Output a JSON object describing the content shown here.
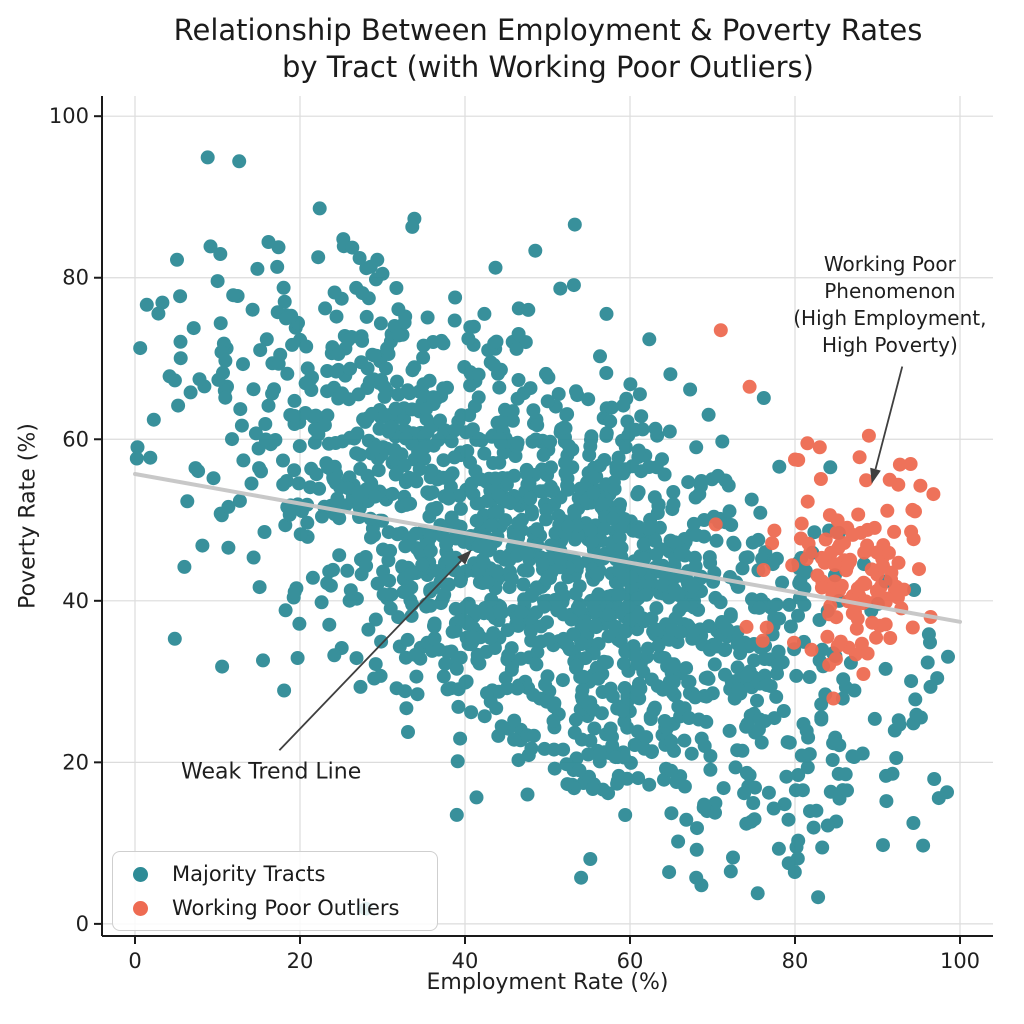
{
  "title": {
    "line1": "Relationship Between Employment & Poverty Rates",
    "line2": "by Tract (with Working Poor Outliers)"
  },
  "chart_data": {
    "type": "scatter",
    "title": "Relationship Between Employment & Poverty Rates by Tract (with Working Poor Outliers)",
    "xlabel": "Employment Rate (%)",
    "ylabel": "Poverty Rate (%)",
    "xlim": [
      -4,
      104
    ],
    "ylim": [
      -1.5,
      102.5
    ],
    "xticks": [
      0,
      20,
      40,
      60,
      80,
      100
    ],
    "yticks": [
      0,
      20,
      40,
      60,
      80,
      100
    ],
    "grid": true,
    "grid_color": "#dcdcdc",
    "spine_color": "#1a1a1a",
    "legend_position": "lower left",
    "series": [
      {
        "name": "Majority Tracts",
        "color": "#2e8b96",
        "marker_radius": 7,
        "opacity": 0.95,
        "n": 1700,
        "seed": 1337,
        "x_dist": {
          "type": "normal",
          "mean": 48,
          "sd": 20,
          "min": 0,
          "max": 100
        },
        "y_model": {
          "type": "linear_noise",
          "intercept": 71,
          "slope": -0.52,
          "noise_sd": 13,
          "min": 1,
          "max": 95
        },
        "extra_points": []
      },
      {
        "name": "Working Poor Outliers",
        "color": "#ee6b52",
        "marker_radius": 7,
        "opacity": 0.95,
        "n": 130,
        "seed": 904,
        "x_dist": {
          "type": "normal",
          "mean": 87.5,
          "sd": 5.5,
          "min": 69,
          "max": 97
        },
        "y_model": {
          "type": "normal",
          "mean": 44,
          "sd": 8,
          "min": 27,
          "max": 63
        },
        "extra_points": [
          [
            71,
            73.5
          ],
          [
            74.5,
            66.5
          ],
          [
            81.5,
            59.5
          ],
          [
            80,
            57.5
          ],
          [
            83,
            59
          ]
        ]
      }
    ],
    "trend_line": {
      "color": "#c6c6c6",
      "width": 4,
      "opacity": 0.95,
      "points": [
        [
          0,
          55.7
        ],
        [
          100,
          37.4
        ]
      ]
    },
    "annotations": [
      {
        "id": "weak-trend",
        "lines": [
          "Weak Trend Line"
        ],
        "single": true,
        "text_xy": [
          16.5,
          18.8
        ],
        "arrow_from": [
          17.5,
          21.5
        ],
        "arrow_to": [
          40.8,
          46.3
        ]
      },
      {
        "id": "working-poor",
        "lines": [
          "Working Poor",
          "Phenomenon",
          "(High Employment,",
          "High Poverty)"
        ],
        "single": false,
        "text_xy": [
          91.5,
          76.6
        ],
        "arrow_from": [
          93,
          69
        ],
        "arrow_to": [
          89.3,
          54.5
        ]
      }
    ],
    "arrow_color": "#3f3f3f"
  },
  "legend": {
    "items": [
      {
        "label": "Majority Tracts",
        "color": "#2e8b96"
      },
      {
        "label": "Working Poor Outliers",
        "color": "#ee6b52"
      }
    ]
  },
  "axes": {
    "x_label": "Employment Rate (%)",
    "y_label": "Poverty Rate (%)"
  }
}
